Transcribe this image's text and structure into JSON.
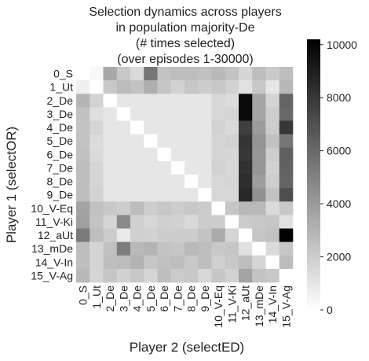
{
  "chart_data": {
    "type": "heatmap",
    "title": [
      "Selection dynamics across players",
      "in population majority-De",
      "(# times selected)",
      "(over episodes 1-30000)"
    ],
    "xlabel": "Player 2 (selectED)",
    "ylabel": "Player 1 (selectOR)",
    "categories": [
      "0_S",
      "1_Ut",
      "2_De",
      "3_De",
      "4_De",
      "5_De",
      "6_De",
      "7_De",
      "8_De",
      "9_De",
      "10_V-Eq",
      "11_V-Ki",
      "12_aUt",
      "13_mDe",
      "14_V-In",
      "15_V-Ag"
    ],
    "colorbar": {
      "min": 0,
      "max": 10200,
      "ticks": [
        0,
        2000,
        4000,
        6000,
        8000,
        10000
      ],
      "colormap": "white-to-black"
    },
    "values": [
      [
        0,
        300,
        3500,
        2200,
        1500,
        5500,
        2400,
        2600,
        2600,
        2500,
        2800,
        2400,
        1600,
        2600,
        2100,
        2600
      ],
      [
        600,
        0,
        2200,
        2700,
        2400,
        3200,
        2300,
        1800,
        2300,
        2000,
        2200,
        1800,
        1200,
        2200,
        1000,
        2900
      ],
      [
        3000,
        1800,
        0,
        1000,
        1000,
        1000,
        1000,
        1000,
        1000,
        1000,
        1600,
        1400,
        9800,
        3600,
        1700,
        6200
      ],
      [
        2500,
        1300,
        1000,
        0,
        1000,
        1000,
        1000,
        1000,
        1000,
        1000,
        1600,
        1700,
        9800,
        3600,
        2000,
        6000
      ],
      [
        2400,
        1700,
        1000,
        1000,
        0,
        1000,
        1000,
        1000,
        1000,
        1000,
        1800,
        1500,
        7700,
        4000,
        2000,
        8000
      ],
      [
        2400,
        1400,
        1000,
        1000,
        1000,
        0,
        1000,
        1000,
        1000,
        1000,
        1700,
        1800,
        8100,
        4300,
        2500,
        5500
      ],
      [
        2500,
        1500,
        1000,
        1000,
        1000,
        1000,
        0,
        1000,
        1000,
        1000,
        1700,
        1600,
        8000,
        4200,
        2000,
        6400
      ],
      [
        2600,
        1700,
        1000,
        1000,
        1000,
        1000,
        1000,
        0,
        1000,
        1000,
        1800,
        1600,
        8200,
        4200,
        1800,
        6300
      ],
      [
        2600,
        1700,
        1000,
        1000,
        1000,
        1000,
        1000,
        1000,
        0,
        1000,
        1600,
        1700,
        8400,
        3900,
        2000,
        6200
      ],
      [
        2600,
        1800,
        1000,
        1000,
        1000,
        1000,
        1000,
        1000,
        1000,
        0,
        1600,
        1600,
        8600,
        4400,
        2400,
        7100
      ],
      [
        3700,
        2500,
        2200,
        2000,
        2700,
        2000,
        2300,
        2000,
        2200,
        2100,
        0,
        2300,
        2800,
        2800,
        1500,
        2200
      ],
      [
        3800,
        2400,
        1700,
        4700,
        1900,
        1600,
        1900,
        1800,
        1500,
        2000,
        2000,
        0,
        2100,
        2200,
        2300,
        1200
      ],
      [
        5300,
        2600,
        2100,
        900,
        1900,
        1800,
        2000,
        2000,
        2000,
        2400,
        3400,
        1700,
        0,
        2300,
        2500,
        10100
      ],
      [
        2600,
        1700,
        2500,
        5200,
        2800,
        3000,
        2400,
        2300,
        2800,
        2600,
        2200,
        2300,
        1200,
        0,
        1500,
        2300
      ],
      [
        2600,
        1700,
        2600,
        2700,
        3100,
        2300,
        2500,
        2600,
        2200,
        2600,
        1900,
        2200,
        2600,
        1700,
        0,
        2700
      ],
      [
        2800,
        1700,
        2300,
        1800,
        2200,
        1700,
        2600,
        2100,
        2200,
        1600,
        2300,
        1800,
        3700,
        2400,
        2200,
        0
      ]
    ]
  }
}
